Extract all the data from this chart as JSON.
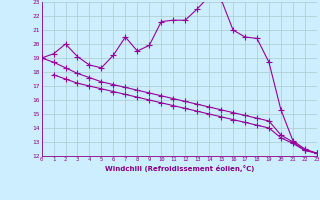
{
  "xlabel": "Windchill (Refroidissement éolien,°C)",
  "bg_color": "#cceeff",
  "grid_color": "#aacccc",
  "line_color": "#990099",
  "xmin": 0,
  "xmax": 23,
  "ymin": 12,
  "ymax": 23,
  "line1_x": [
    0,
    1,
    2,
    3,
    4,
    5,
    6,
    7,
    8,
    9,
    10,
    11,
    12,
    13,
    14,
    15,
    16,
    17,
    18,
    19,
    20,
    21,
    22,
    23
  ],
  "line1_y": [
    19.0,
    19.3,
    20.0,
    19.1,
    18.5,
    18.3,
    19.2,
    20.5,
    19.5,
    19.9,
    21.6,
    21.7,
    21.7,
    22.5,
    23.4,
    23.2,
    21.0,
    20.5,
    20.4,
    18.7,
    15.3,
    13.1,
    12.5,
    12.2
  ],
  "line2_x": [
    0,
    1,
    2,
    3,
    4,
    5,
    6,
    7,
    8,
    9,
    10,
    11,
    12,
    13,
    14,
    15,
    16,
    17,
    18,
    19,
    20,
    21,
    22,
    23
  ],
  "line2_y": [
    19.0,
    18.7,
    18.3,
    17.9,
    17.6,
    17.3,
    17.1,
    16.9,
    16.7,
    16.5,
    16.3,
    16.1,
    15.9,
    15.7,
    15.5,
    15.3,
    15.1,
    14.9,
    14.7,
    14.5,
    13.5,
    13.0,
    12.4,
    12.2
  ],
  "line3_x": [
    1,
    2,
    3,
    4,
    5,
    6,
    7,
    8,
    9,
    10,
    11,
    12,
    13,
    14,
    15,
    16,
    17,
    18,
    19,
    20,
    21,
    22,
    23
  ],
  "line3_y": [
    17.8,
    17.5,
    17.2,
    17.0,
    16.8,
    16.6,
    16.4,
    16.2,
    16.0,
    15.8,
    15.6,
    15.4,
    15.2,
    15.0,
    14.8,
    14.6,
    14.4,
    14.2,
    14.0,
    13.3,
    12.9,
    12.4,
    12.2
  ]
}
